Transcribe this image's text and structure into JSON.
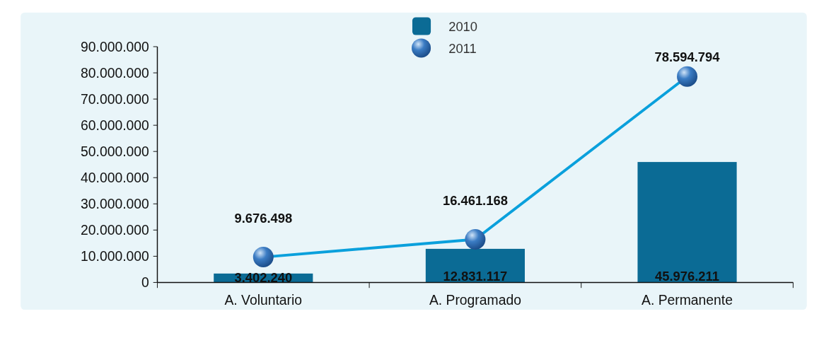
{
  "chart_data": {
    "type": "bar",
    "categories": [
      "A. Voluntario",
      "A. Programado",
      "A. Permanente"
    ],
    "series": [
      {
        "name": "2010",
        "color": "#0b6b95",
        "values": [
          3402240,
          12831117,
          45976211
        ],
        "value_labels": [
          "3.402.240",
          "12.831.117",
          "45.976.211"
        ]
      },
      {
        "name": "2011",
        "type": "line",
        "color": "#0aa0dc",
        "values": [
          9676498,
          16461168,
          78594794
        ],
        "value_labels": [
          "9.676.498",
          "16.461.168",
          "78.594.794"
        ]
      }
    ],
    "ylim": [
      0,
      90000000
    ],
    "yticks": [
      0,
      {
        "value": 10000000,
        "label": "10.000.000"
      },
      {
        "value": 20000000,
        "label": "20.000.000"
      },
      {
        "value": 30000000,
        "label": "30.000.000"
      },
      {
        "value": 40000000,
        "label": "40.000.000"
      },
      {
        "value": 50000000,
        "label": "50.000.000"
      },
      {
        "value": 60000000,
        "label": "60.000.000"
      },
      {
        "value": 70000000,
        "label": "70.000.000"
      },
      {
        "value": 80000000,
        "label": "80.000.000"
      },
      {
        "value": 90000000,
        "label": "90.000.000"
      }
    ],
    "legend": "top",
    "marker": "circle",
    "grid": false
  }
}
